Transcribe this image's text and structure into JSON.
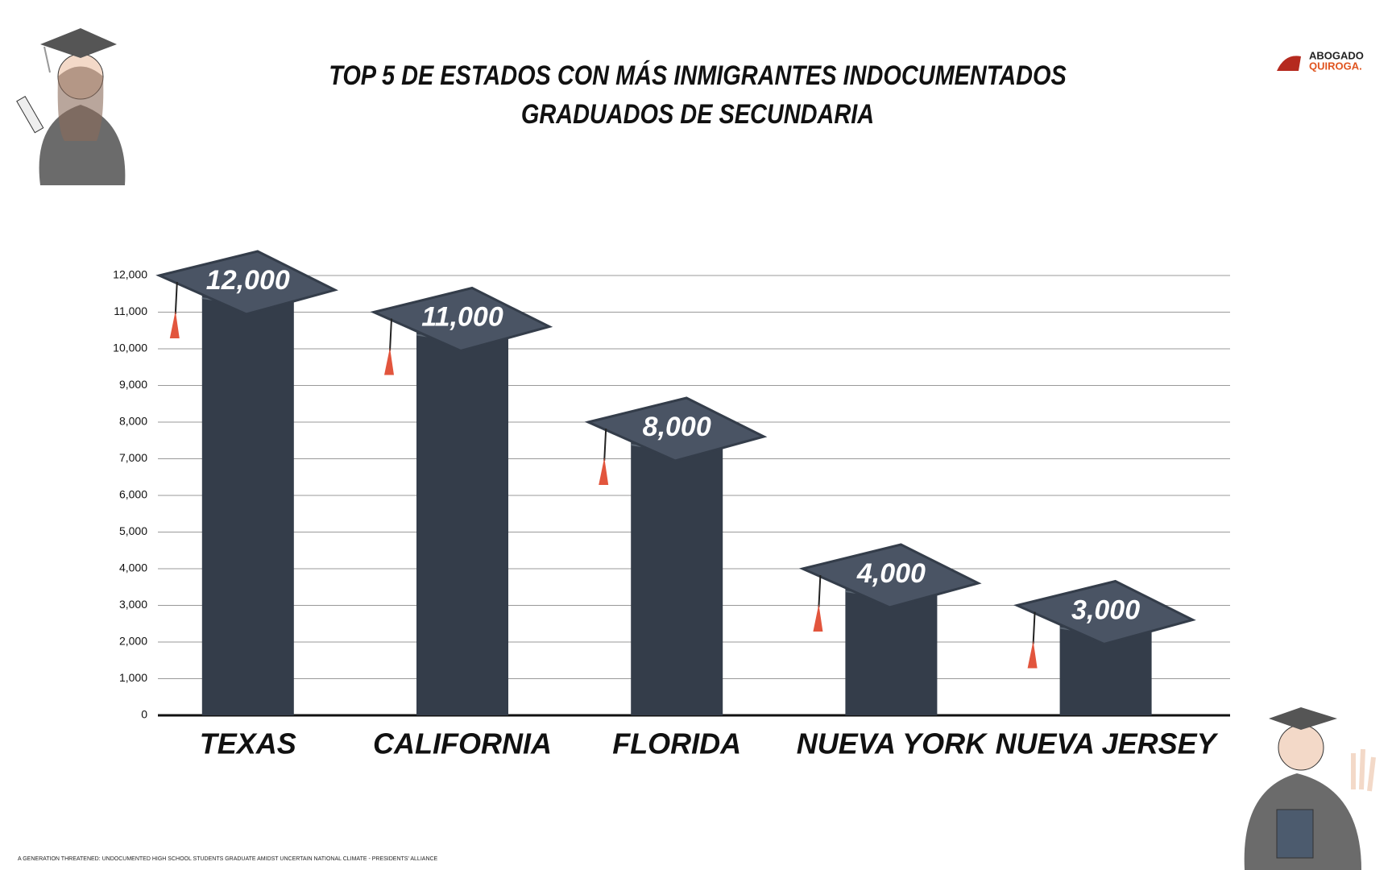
{
  "chart_data": {
    "type": "bar",
    "title": "TOP 5 DE ESTADOS CON MÁS INMIGRANTES INDOCUMENTADOS",
    "subtitle": "GRADUADOS DE SECUNDARIA",
    "categories": [
      "TEXAS",
      "CALIFORNIA",
      "FLORIDA",
      "NUEVA YORK",
      "NUEVA JERSEY"
    ],
    "values": [
      12000,
      11000,
      8000,
      4000,
      3000
    ],
    "value_labels": [
      "12,000",
      "11,000",
      "8,000",
      "4,000",
      "3,000"
    ],
    "color": "#343d4a",
    "ylim": [
      0,
      12000
    ],
    "yticks": [
      0,
      {
        "value": 1000,
        "label": "1,000"
      },
      {
        "value": 2000,
        "label": "2,000"
      },
      {
        "value": 3000,
        "label": "3,000"
      },
      {
        "value": 4000,
        "label": "4,000"
      },
      {
        "value": 5000,
        "label": "5,000"
      },
      {
        "value": 6000,
        "label": "6,000"
      },
      {
        "value": 7000,
        "label": "7,000"
      },
      {
        "value": 8000,
        "label": "8,000"
      },
      {
        "value": 9000,
        "label": "9,000"
      },
      {
        "value": 10000,
        "label": "10,000"
      },
      {
        "value": 11000,
        "label": "11,000"
      },
      {
        "value": 12000,
        "label": "12,000"
      }
    ],
    "grid": true,
    "source": "A GENERATION THREATENED: UNDOCUMENTED HIGH SCHOOL STUDENTS GRADUATE AMIDST UNCERTAIN NATIONAL CLIMATE - PRESIDENTS' ALLIANCE"
  },
  "logo": {
    "line1": "ABOGADO",
    "line2": "QUIROGA."
  }
}
